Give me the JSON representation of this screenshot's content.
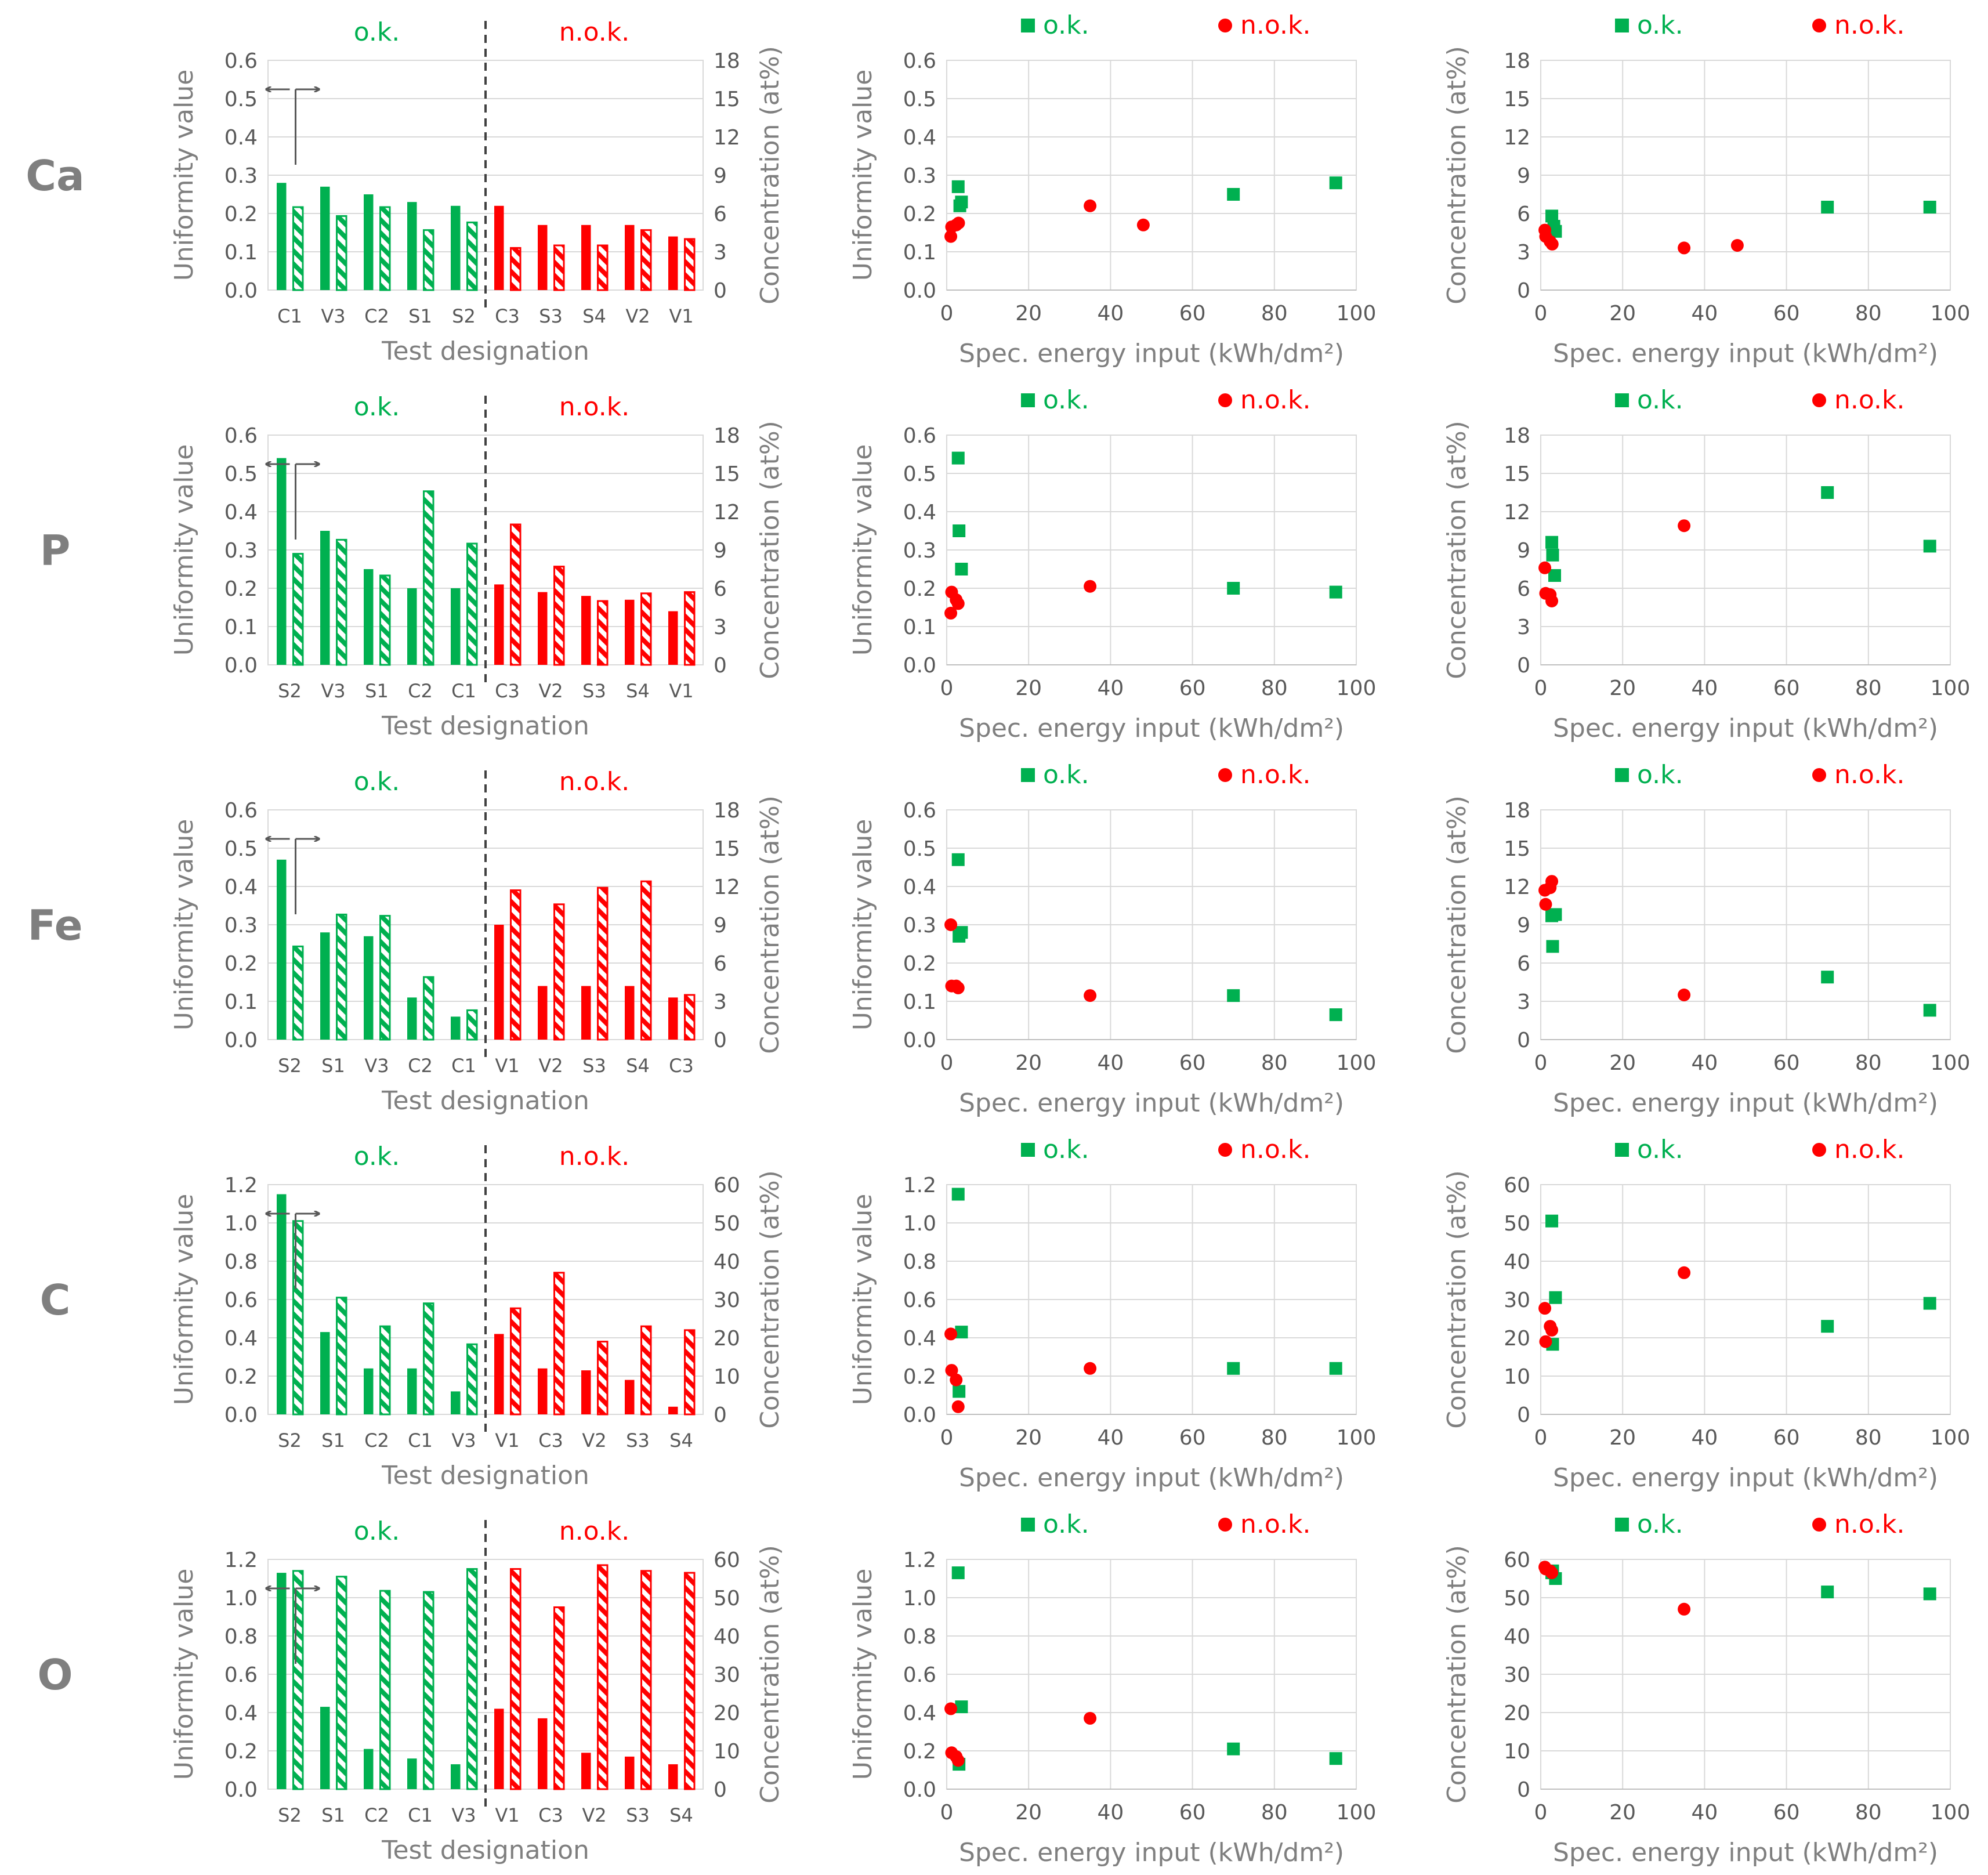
{
  "legend": {
    "ok": "o.k.",
    "nok": "n.o.k."
  },
  "colors": {
    "ok": "#00B050",
    "nok": "#FF0000",
    "axis": "#7f7f7f",
    "grid": "#d9d9d9",
    "text": "#595959",
    "label": "#7f7f7f"
  },
  "chart_data": [
    {
      "type": "bar",
      "element": "Ca",
      "categories": [
        "C1",
        "V3",
        "C2",
        "S1",
        "S2",
        "C3",
        "S3",
        "S4",
        "V2",
        "V1"
      ],
      "status": [
        "ok",
        "ok",
        "ok",
        "ok",
        "ok",
        "nok",
        "nok",
        "nok",
        "nok",
        "nok"
      ],
      "series": [
        {
          "name": "Uniformity value",
          "axis": "left",
          "values": [
            0.28,
            0.27,
            0.25,
            0.23,
            0.22,
            0.22,
            0.17,
            0.17,
            0.17,
            0.14
          ]
        },
        {
          "name": "Concentration (at%)",
          "axis": "right",
          "values": [
            6.5,
            5.8,
            6.5,
            4.7,
            5.3,
            3.3,
            3.5,
            3.5,
            4.7,
            4.0
          ]
        }
      ],
      "ylabel": "Uniformity value",
      "y2label": "Concentration (at%)",
      "xlabel": "Test designation",
      "ylim": [
        0,
        0.6
      ],
      "yticks": [
        "0.0",
        "0.1",
        "0.2",
        "0.3",
        "0.4",
        "0.5",
        "0.6"
      ],
      "y2lim": [
        0,
        18
      ],
      "y2ticks": [
        "0",
        "3",
        "6",
        "9",
        "12",
        "15",
        "18"
      ],
      "grid": "horizontal"
    },
    {
      "type": "scatter",
      "element": "Ca",
      "ylabel": "Uniformity value",
      "xlabel": "Spec. energy input (kWh/dm²)",
      "xlim": [
        0,
        100
      ],
      "xticks": [
        "0",
        "20",
        "40",
        "60",
        "80",
        "100"
      ],
      "ylim": [
        0,
        0.6
      ],
      "yticks": [
        "0.0",
        "0.1",
        "0.2",
        "0.3",
        "0.4",
        "0.5",
        "0.6"
      ],
      "grid": "both",
      "ok": [
        [
          2.8,
          0.27
        ],
        [
          3.2,
          0.22
        ],
        [
          3.6,
          0.23
        ],
        [
          70,
          0.25
        ],
        [
          95,
          0.28
        ]
      ],
      "nok": [
        [
          1.0,
          0.14
        ],
        [
          1.2,
          0.165
        ],
        [
          2.3,
          0.17
        ],
        [
          2.9,
          0.175
        ],
        [
          35,
          0.22
        ],
        [
          48,
          0.17
        ]
      ]
    },
    {
      "type": "scatter",
      "element": "Ca",
      "ylabel": "Concentration (at%)",
      "xlabel": "Spec. energy input (kWh/dm²)",
      "xlim": [
        0,
        100
      ],
      "xticks": [
        "0",
        "20",
        "40",
        "60",
        "80",
        "100"
      ],
      "ylim": [
        0,
        18
      ],
      "yticks": [
        "0",
        "3",
        "6",
        "9",
        "12",
        "15",
        "18"
      ],
      "grid": "both",
      "ok": [
        [
          2.7,
          5.8
        ],
        [
          3.2,
          5.0
        ],
        [
          3.6,
          4.6
        ],
        [
          70,
          6.5
        ],
        [
          95,
          6.5
        ]
      ],
      "nok": [
        [
          1.0,
          4.7
        ],
        [
          1.2,
          4.2
        ],
        [
          2.3,
          3.8
        ],
        [
          2.8,
          3.6
        ],
        [
          35,
          3.3
        ],
        [
          48,
          3.5
        ]
      ]
    },
    {
      "type": "bar",
      "element": "P",
      "categories": [
        "S2",
        "V3",
        "S1",
        "C2",
        "C1",
        "C3",
        "V2",
        "S3",
        "S4",
        "V1"
      ],
      "status": [
        "ok",
        "ok",
        "ok",
        "ok",
        "ok",
        "nok",
        "nok",
        "nok",
        "nok",
        "nok"
      ],
      "series": [
        {
          "name": "Uniformity value",
          "axis": "left",
          "values": [
            0.54,
            0.35,
            0.25,
            0.2,
            0.2,
            0.21,
            0.19,
            0.18,
            0.17,
            0.14
          ]
        },
        {
          "name": "Concentration (at%)",
          "axis": "right",
          "values": [
            8.7,
            9.8,
            7.0,
            13.6,
            9.5,
            11.0,
            7.7,
            5.0,
            5.6,
            5.7
          ]
        }
      ],
      "ylabel": "Uniformity value",
      "y2label": "Concentration (at%)",
      "xlabel": "Test designation",
      "ylim": [
        0,
        0.6
      ],
      "yticks": [
        "0.0",
        "0.1",
        "0.2",
        "0.3",
        "0.4",
        "0.5",
        "0.6"
      ],
      "y2lim": [
        0,
        18
      ],
      "y2ticks": [
        "0",
        "3",
        "6",
        "9",
        "12",
        "15",
        "18"
      ],
      "grid": "horizontal"
    },
    {
      "type": "scatter",
      "element": "P",
      "ylabel": "Uniformity value",
      "xlabel": "Spec. energy input (kWh/dm²)",
      "xlim": [
        0,
        100
      ],
      "xticks": [
        "0",
        "20",
        "40",
        "60",
        "80",
        "100"
      ],
      "ylim": [
        0,
        0.6
      ],
      "yticks": [
        "0.0",
        "0.1",
        "0.2",
        "0.3",
        "0.4",
        "0.5",
        "0.6"
      ],
      "grid": "both",
      "ok": [
        [
          2.8,
          0.54
        ],
        [
          3.0,
          0.35
        ],
        [
          3.6,
          0.25
        ],
        [
          70,
          0.2
        ],
        [
          95,
          0.19
        ]
      ],
      "nok": [
        [
          1.0,
          0.135
        ],
        [
          1.2,
          0.19
        ],
        [
          2.3,
          0.17
        ],
        [
          2.8,
          0.16
        ],
        [
          35,
          0.205
        ]
      ]
    },
    {
      "type": "scatter",
      "element": "P",
      "ylabel": "Concentration (at%)",
      "xlabel": "Spec. energy input (kWh/dm²)",
      "xlim": [
        0,
        100
      ],
      "xticks": [
        "0",
        "20",
        "40",
        "60",
        "80",
        "100"
      ],
      "ylim": [
        0,
        18
      ],
      "yticks": [
        "0",
        "3",
        "6",
        "9",
        "12",
        "15",
        "18"
      ],
      "grid": "both",
      "ok": [
        [
          2.7,
          9.6
        ],
        [
          2.9,
          8.6
        ],
        [
          3.4,
          7.0
        ],
        [
          70,
          13.5
        ],
        [
          95,
          9.3
        ]
      ],
      "nok": [
        [
          1.0,
          7.6
        ],
        [
          1.2,
          5.6
        ],
        [
          2.3,
          5.5
        ],
        [
          2.7,
          5.0
        ],
        [
          35,
          10.9
        ]
      ]
    },
    {
      "type": "bar",
      "element": "Fe",
      "categories": [
        "S2",
        "S1",
        "V3",
        "C2",
        "C1",
        "V1",
        "V2",
        "S3",
        "S4",
        "C3"
      ],
      "status": [
        "ok",
        "ok",
        "ok",
        "ok",
        "ok",
        "nok",
        "nok",
        "nok",
        "nok",
        "nok"
      ],
      "series": [
        {
          "name": "Uniformity value",
          "axis": "left",
          "values": [
            0.47,
            0.28,
            0.27,
            0.11,
            0.06,
            0.3,
            0.14,
            0.14,
            0.14,
            0.11
          ]
        },
        {
          "name": "Concentration (at%)",
          "axis": "right",
          "values": [
            7.3,
            9.8,
            9.7,
            4.9,
            2.3,
            11.7,
            10.6,
            11.9,
            12.4,
            3.5
          ]
        }
      ],
      "ylabel": "Uniformity value",
      "y2label": "Concentration (at%)",
      "xlabel": "Test designation",
      "ylim": [
        0,
        0.6
      ],
      "yticks": [
        "0.0",
        "0.1",
        "0.2",
        "0.3",
        "0.4",
        "0.5",
        "0.6"
      ],
      "y2lim": [
        0,
        18
      ],
      "y2ticks": [
        "0",
        "3",
        "6",
        "9",
        "12",
        "15",
        "18"
      ],
      "grid": "horizontal"
    },
    {
      "type": "scatter",
      "element": "Fe",
      "ylabel": "Uniformity value",
      "xlabel": "Spec. energy input (kWh/dm²)",
      "xlim": [
        0,
        100
      ],
      "xticks": [
        "0",
        "20",
        "40",
        "60",
        "80",
        "100"
      ],
      "ylim": [
        0,
        0.6
      ],
      "yticks": [
        "0.0",
        "0.1",
        "0.2",
        "0.3",
        "0.4",
        "0.5",
        "0.6"
      ],
      "grid": "both",
      "ok": [
        [
          2.8,
          0.47
        ],
        [
          3.0,
          0.27
        ],
        [
          3.6,
          0.28
        ],
        [
          70,
          0.115
        ],
        [
          95,
          0.065
        ]
      ],
      "nok": [
        [
          1.0,
          0.3
        ],
        [
          1.2,
          0.14
        ],
        [
          2.3,
          0.14
        ],
        [
          2.8,
          0.135
        ],
        [
          35,
          0.115
        ]
      ]
    },
    {
      "type": "scatter",
      "element": "Fe",
      "ylabel": "Concentration (at%)",
      "xlabel": "Spec. energy input (kWh/dm²)",
      "xlim": [
        0,
        100
      ],
      "xticks": [
        "0",
        "20",
        "40",
        "60",
        "80",
        "100"
      ],
      "ylim": [
        0,
        18
      ],
      "yticks": [
        "0",
        "3",
        "6",
        "9",
        "12",
        "15",
        "18"
      ],
      "grid": "both",
      "ok": [
        [
          2.7,
          9.7
        ],
        [
          2.9,
          7.3
        ],
        [
          3.6,
          9.8
        ],
        [
          70,
          4.9
        ],
        [
          95,
          2.3
        ]
      ],
      "nok": [
        [
          1.0,
          11.7
        ],
        [
          1.2,
          10.6
        ],
        [
          2.3,
          11.9
        ],
        [
          2.7,
          12.4
        ],
        [
          35,
          3.5
        ]
      ]
    },
    {
      "type": "bar",
      "element": "C",
      "categories": [
        "S2",
        "S1",
        "C2",
        "C1",
        "V3",
        "V1",
        "C3",
        "V2",
        "S3",
        "S4"
      ],
      "status": [
        "ok",
        "ok",
        "ok",
        "ok",
        "ok",
        "nok",
        "nok",
        "nok",
        "nok",
        "nok"
      ],
      "series": [
        {
          "name": "Uniformity value",
          "axis": "left",
          "values": [
            1.15,
            0.43,
            0.24,
            0.24,
            0.12,
            0.42,
            0.24,
            0.23,
            0.18,
            0.04
          ]
        },
        {
          "name": "Concentration (at%)",
          "axis": "right",
          "values": [
            50.5,
            30.5,
            23,
            29,
            18.3,
            27.7,
            37,
            19,
            23,
            22
          ]
        }
      ],
      "ylabel": "Uniformity value",
      "y2label": "Concentration (at%)",
      "xlabel": "Test designation",
      "ylim": [
        0,
        1.2
      ],
      "yticks": [
        "0.0",
        "0.2",
        "0.4",
        "0.6",
        "0.8",
        "1.0",
        "1.2"
      ],
      "y2lim": [
        0,
        60
      ],
      "y2ticks": [
        "0",
        "10",
        "20",
        "30",
        "40",
        "50",
        "60"
      ],
      "grid": "horizontal"
    },
    {
      "type": "scatter",
      "element": "C",
      "ylabel": "Uniformity value",
      "xlabel": "Spec. energy input (kWh/dm²)",
      "xlim": [
        0,
        100
      ],
      "xticks": [
        "0",
        "20",
        "40",
        "60",
        "80",
        "100"
      ],
      "ylim": [
        0,
        1.2
      ],
      "yticks": [
        "0.0",
        "0.2",
        "0.4",
        "0.6",
        "0.8",
        "1.0",
        "1.2"
      ],
      "grid": "both",
      "ok": [
        [
          2.8,
          1.15
        ],
        [
          3.0,
          0.12
        ],
        [
          3.6,
          0.43
        ],
        [
          70,
          0.24
        ],
        [
          95,
          0.24
        ]
      ],
      "nok": [
        [
          1.0,
          0.42
        ],
        [
          1.2,
          0.23
        ],
        [
          2.3,
          0.18
        ],
        [
          2.8,
          0.04
        ],
        [
          35,
          0.24
        ]
      ]
    },
    {
      "type": "scatter",
      "element": "C",
      "ylabel": "Concentration (at%)",
      "xlabel": "Spec. energy input (kWh/dm²)",
      "xlim": [
        0,
        100
      ],
      "xticks": [
        "0",
        "20",
        "40",
        "60",
        "80",
        "100"
      ],
      "ylim": [
        0,
        60
      ],
      "yticks": [
        "0",
        "10",
        "20",
        "30",
        "40",
        "50",
        "60"
      ],
      "grid": "both",
      "ok": [
        [
          2.7,
          50.5
        ],
        [
          2.9,
          18.3
        ],
        [
          3.6,
          30.5
        ],
        [
          70,
          23
        ],
        [
          95,
          29
        ]
      ],
      "nok": [
        [
          1.0,
          27.7
        ],
        [
          1.2,
          19
        ],
        [
          2.3,
          23
        ],
        [
          2.7,
          22
        ],
        [
          35,
          37
        ]
      ]
    },
    {
      "type": "bar",
      "element": "O",
      "categories": [
        "S2",
        "S1",
        "C2",
        "C1",
        "V3",
        "V1",
        "C3",
        "V2",
        "S3",
        "S4"
      ],
      "status": [
        "ok",
        "ok",
        "ok",
        "ok",
        "ok",
        "nok",
        "nok",
        "nok",
        "nok",
        "nok"
      ],
      "series": [
        {
          "name": "Uniformity value",
          "axis": "left",
          "values": [
            1.13,
            0.43,
            0.21,
            0.16,
            0.13,
            0.42,
            0.37,
            0.19,
            0.17,
            0.13
          ]
        },
        {
          "name": "Concentration (at%)",
          "axis": "right",
          "values": [
            57,
            55.5,
            51.8,
            51.5,
            57.5,
            57.5,
            47.5,
            58.5,
            57,
            56.5
          ]
        }
      ],
      "ylabel": "Uniformity value",
      "y2label": "Concentration (at%)",
      "xlabel": "Test designation",
      "ylim": [
        0,
        1.2
      ],
      "yticks": [
        "0.0",
        "0.2",
        "0.4",
        "0.6",
        "0.8",
        "1.0",
        "1.2"
      ],
      "y2lim": [
        0,
        60
      ],
      "y2ticks": [
        "0",
        "10",
        "20",
        "30",
        "40",
        "50",
        "60"
      ],
      "grid": "horizontal"
    },
    {
      "type": "scatter",
      "element": "O",
      "ylabel": "Uniformity value",
      "xlabel": "Spec. energy input (kWh/dm²)",
      "xlim": [
        0,
        100
      ],
      "xticks": [
        "0",
        "20",
        "40",
        "60",
        "80",
        "100"
      ],
      "ylim": [
        0,
        1.2
      ],
      "yticks": [
        "0.0",
        "0.2",
        "0.4",
        "0.6",
        "0.8",
        "1.0",
        "1.2"
      ],
      "grid": "both",
      "ok": [
        [
          2.8,
          1.13
        ],
        [
          3.0,
          0.13
        ],
        [
          3.6,
          0.43
        ],
        [
          70,
          0.21
        ],
        [
          95,
          0.16
        ]
      ],
      "nok": [
        [
          1.0,
          0.42
        ],
        [
          1.2,
          0.19
        ],
        [
          2.3,
          0.17
        ],
        [
          2.8,
          0.15
        ],
        [
          35,
          0.37
        ]
      ]
    },
    {
      "type": "scatter",
      "element": "O",
      "ylabel": "Concentration (at%)",
      "xlabel": "Spec. energy input (kWh/dm²)",
      "xlim": [
        0,
        100
      ],
      "xticks": [
        "0",
        "20",
        "40",
        "60",
        "80",
        "100"
      ],
      "ylim": [
        0,
        60
      ],
      "yticks": [
        "0",
        "10",
        "20",
        "30",
        "40",
        "50",
        "60"
      ],
      "grid": "both",
      "ok": [
        [
          2.7,
          56.5
        ],
        [
          2.9,
          57
        ],
        [
          3.6,
          55
        ],
        [
          70,
          51.5
        ],
        [
          95,
          51
        ]
      ],
      "nok": [
        [
          1.0,
          58
        ],
        [
          1.2,
          57.5
        ],
        [
          2.3,
          57
        ],
        [
          2.7,
          56.5
        ],
        [
          35,
          47
        ]
      ]
    }
  ]
}
